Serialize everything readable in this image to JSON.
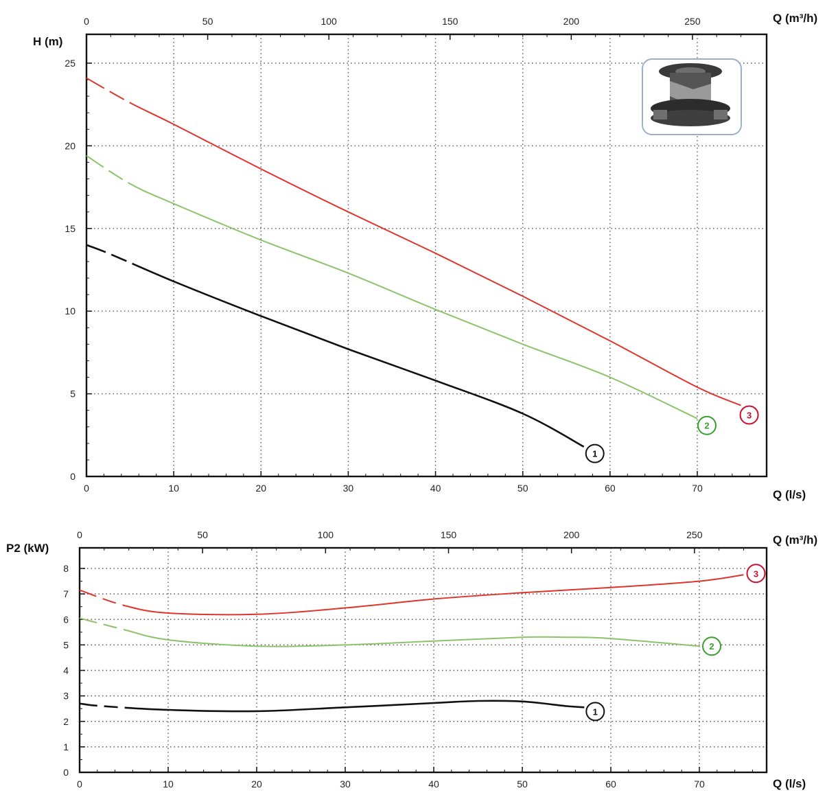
{
  "colors": {
    "series_1": "#111111",
    "series_2": "#8cc36a",
    "series_3": "#e0342b",
    "marker_1": "#111111",
    "marker_2": "#3a9e2e",
    "marker_3": "#c8102e"
  },
  "image": {
    "icon": "pump-impeller-icon"
  },
  "chart_data": [
    {
      "type": "line",
      "ylabel": "H (m)",
      "xlabel": "Q (l/s)",
      "x2label": "Q (m³/h)",
      "xlim": [
        0,
        78
      ],
      "ylim": [
        0,
        26
      ],
      "x2lim": [
        0,
        280.8
      ],
      "x_ticks": [
        "0",
        "10",
        "20",
        "30",
        "40",
        "50",
        "60",
        "70"
      ],
      "y_ticks": [
        "0",
        "5",
        "10",
        "15",
        "20",
        "25"
      ],
      "x2_ticks": [
        "0",
        "50",
        "100",
        "150",
        "200",
        "250"
      ],
      "grid": true,
      "series": [
        {
          "name": "1",
          "x": [
            0,
            2.5,
            10,
            20,
            30,
            40,
            50,
            57
          ],
          "y": [
            14.0,
            13.5,
            11.8,
            9.7,
            7.7,
            5.8,
            3.8,
            1.8
          ]
        },
        {
          "name": "2",
          "x": [
            0,
            5,
            10,
            20,
            30,
            40,
            50,
            60,
            70
          ],
          "y": [
            19.4,
            17.7,
            16.5,
            14.3,
            12.3,
            10.1,
            8.0,
            6.0,
            3.5
          ]
        },
        {
          "name": "3",
          "x": [
            0,
            5,
            10,
            20,
            30,
            40,
            50,
            60,
            70,
            75
          ],
          "y": [
            24.1,
            22.6,
            21.3,
            18.6,
            16.0,
            13.5,
            10.9,
            8.2,
            5.4,
            4.3
          ]
        }
      ],
      "markers": [
        "1",
        "2",
        "3"
      ]
    },
    {
      "type": "line",
      "ylabel": "P2 (kW)",
      "xlabel": "Q (l/s)",
      "x2label": "Q (m³/h)",
      "xlim": [
        0,
        78
      ],
      "ylim": [
        0,
        8.5
      ],
      "x2lim": [
        0,
        280.8
      ],
      "x_ticks": [
        "0",
        "10",
        "20",
        "30",
        "40",
        "50",
        "60",
        "70"
      ],
      "y_ticks": [
        "0",
        "1",
        "2",
        "3",
        "4",
        "5",
        "6",
        "7",
        "8"
      ],
      "x2_ticks": [
        "0",
        "50",
        "100",
        "150",
        "200",
        "250"
      ],
      "grid": true,
      "series": [
        {
          "name": "1",
          "x": [
            0,
            2.5,
            10,
            20,
            30,
            40,
            45,
            50,
            55,
            57
          ],
          "y": [
            2.7,
            2.6,
            2.45,
            2.4,
            2.55,
            2.72,
            2.8,
            2.78,
            2.6,
            2.55
          ]
        },
        {
          "name": "2",
          "x": [
            0,
            5,
            10,
            20,
            30,
            40,
            50,
            55,
            60,
            70
          ],
          "y": [
            6.05,
            5.6,
            5.2,
            4.95,
            5.0,
            5.15,
            5.3,
            5.3,
            5.25,
            4.95
          ]
        },
        {
          "name": "3",
          "x": [
            0,
            5,
            10,
            20,
            30,
            40,
            50,
            60,
            70,
            75
          ],
          "y": [
            7.15,
            6.55,
            6.25,
            6.2,
            6.45,
            6.8,
            7.05,
            7.25,
            7.5,
            7.75
          ]
        }
      ],
      "markers": [
        "1",
        "2",
        "3"
      ]
    }
  ]
}
